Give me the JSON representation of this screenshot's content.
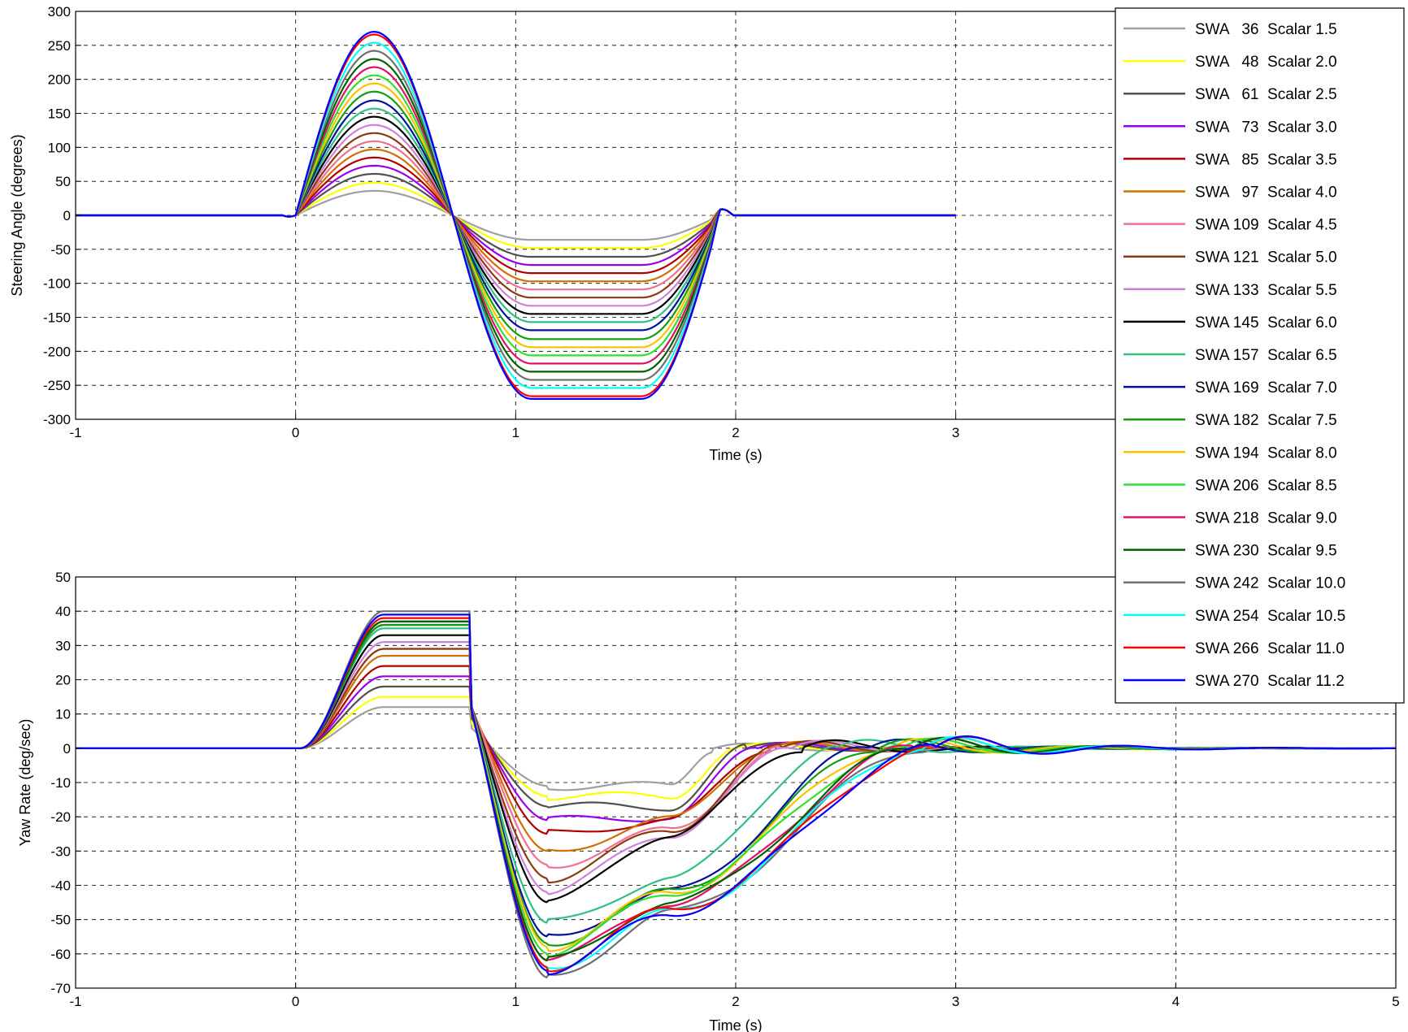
{
  "chart_data": [
    {
      "type": "line",
      "xlabel": "Time (s)",
      "ylabel": "Steering Angle (degrees)",
      "xlim": [
        -1,
        5
      ],
      "ylim": [
        -300,
        300
      ],
      "xticks": [
        "-1",
        "0",
        "1",
        "2",
        "3",
        "4",
        "5"
      ],
      "yticks": [
        "300",
        "250",
        "200",
        "150",
        "100",
        "50",
        "0",
        "-50",
        "-100",
        "-150",
        "-200",
        "-250",
        "-300"
      ],
      "grid": true,
      "legend_position": "top-right",
      "series_note": "Sine-with-dwell steering input; each series peaks at +SWA near t=0.35 s and dwells at -SWA from about 1.1 s to 1.6 s",
      "series": [
        {
          "name": "SWA   36  Scalar 1.5",
          "swa": 36,
          "color": "#a0a0a0"
        },
        {
          "name": "SWA   48  Scalar 2.0",
          "swa": 48,
          "color": "#ffff00"
        },
        {
          "name": "SWA   61  Scalar 2.5",
          "swa": 61,
          "color": "#505050"
        },
        {
          "name": "SWA   73  Scalar 3.0",
          "swa": 73,
          "color": "#9900ee"
        },
        {
          "name": "SWA   85  Scalar 3.5",
          "swa": 85,
          "color": "#b00000"
        },
        {
          "name": "SWA   97  Scalar 4.0",
          "swa": 97,
          "color": "#d07000"
        },
        {
          "name": "SWA 109  Scalar 4.5",
          "swa": 109,
          "color": "#f07090"
        },
        {
          "name": "SWA 121  Scalar 5.0",
          "swa": 121,
          "color": "#8a3a10"
        },
        {
          "name": "SWA 133  Scalar 5.5",
          "swa": 133,
          "color": "#d080d8"
        },
        {
          "name": "SWA 145  Scalar 6.0",
          "swa": 145,
          "color": "#000000"
        },
        {
          "name": "SWA 157  Scalar 6.5",
          "swa": 157,
          "color": "#30c080"
        },
        {
          "name": "SWA 169  Scalar 7.0",
          "swa": 169,
          "color": "#0010a0"
        },
        {
          "name": "SWA 182  Scalar 7.5",
          "swa": 182,
          "color": "#10a010"
        },
        {
          "name": "SWA 194  Scalar 8.0",
          "swa": 194,
          "color": "#ffc000"
        },
        {
          "name": "SWA 206  Scalar 8.5",
          "swa": 206,
          "color": "#30e030"
        },
        {
          "name": "SWA 218  Scalar 9.0",
          "swa": 218,
          "color": "#e0106a"
        },
        {
          "name": "SWA 230  Scalar 9.5",
          "swa": 230,
          "color": "#006000"
        },
        {
          "name": "SWA 242  Scalar 10.0",
          "swa": 242,
          "color": "#707070"
        },
        {
          "name": "SWA 254  Scalar 10.5",
          "swa": 254,
          "color": "#00ffff"
        },
        {
          "name": "SWA 266  Scalar 11.0",
          "swa": 266,
          "color": "#ff0000"
        },
        {
          "name": "SWA 270  Scalar 11.2",
          "swa": 270,
          "color": "#0000ff"
        }
      ]
    },
    {
      "type": "line",
      "xlabel": "Time (s)",
      "ylabel": "Yaw Rate (deg/sec)",
      "xlim": [
        -1,
        5
      ],
      "ylim": [
        -70,
        50
      ],
      "xticks": [
        "-1",
        "0",
        "1",
        "2",
        "3",
        "4",
        "5"
      ],
      "yticks": [
        "50",
        "40",
        "30",
        "20",
        "10",
        "0",
        "-10",
        "-20",
        "-30",
        "-40",
        "-50",
        "-60",
        "-70"
      ],
      "grid": true,
      "series_note": "Yaw rate response for the same 21 steering inputs",
      "series": [
        {
          "name": "SWA   36  Scalar 1.5",
          "peak": 12,
          "trough": -11,
          "dwell": -11,
          "recovery_time": 1.9
        },
        {
          "name": "SWA   48  Scalar 2.0",
          "peak": 15,
          "trough": -14,
          "dwell": -14,
          "recovery_time": 2.0
        },
        {
          "name": "SWA   61  Scalar 2.5",
          "peak": 18,
          "trough": -17,
          "dwell": -17,
          "recovery_time": 2.05
        },
        {
          "name": "SWA   73  Scalar 3.0",
          "peak": 21,
          "trough": -21,
          "dwell": -20,
          "recovery_time": 2.1
        },
        {
          "name": "SWA   85  Scalar 3.5",
          "peak": 24,
          "trough": -25,
          "dwell": -21,
          "recovery_time": 2.15
        },
        {
          "name": "SWA   97  Scalar 4.0",
          "peak": 27,
          "trough": -30,
          "dwell": -21,
          "recovery_time": 2.15
        },
        {
          "name": "SWA 109  Scalar 4.5",
          "peak": 29,
          "trough": -34,
          "dwell": -24,
          "recovery_time": 2.2
        },
        {
          "name": "SWA 121  Scalar 5.0",
          "peak": 29,
          "trough": -38,
          "dwell": -24,
          "recovery_time": 2.2
        },
        {
          "name": "SWA 133  Scalar 5.5",
          "peak": 31,
          "trough": -42,
          "dwell": -25,
          "recovery_time": 2.25
        },
        {
          "name": "SWA 145  Scalar 6.0",
          "peak": 33,
          "trough": -45,
          "dwell": -25,
          "recovery_time": 2.3
        },
        {
          "name": "SWA 157  Scalar 6.5",
          "peak": 35,
          "trough": -51,
          "dwell": -38,
          "recovery_time": 2.45
        },
        {
          "name": "SWA 169  Scalar 7.0",
          "peak": 36,
          "trough": -55,
          "dwell": -42,
          "recovery_time": 2.6
        },
        {
          "name": "SWA 182  Scalar 7.5",
          "peak": 36,
          "trough": -57,
          "dwell": -42,
          "recovery_time": 2.65
        },
        {
          "name": "SWA 194  Scalar 8.0",
          "peak": 37,
          "trough": -58,
          "dwell": -42,
          "recovery_time": 2.7
        },
        {
          "name": "SWA 206  Scalar 8.5",
          "peak": 37,
          "trough": -60,
          "dwell": -42,
          "recovery_time": 2.75
        },
        {
          "name": "SWA 218  Scalar 9.0",
          "peak": 37,
          "trough": -62,
          "dwell": -45,
          "recovery_time": 2.8
        },
        {
          "name": "SWA 230  Scalar 9.5",
          "peak": 37,
          "trough": -62,
          "dwell": -45,
          "recovery_time": 2.8
        },
        {
          "name": "SWA 242  Scalar 10.0",
          "peak": 40,
          "trough": -67,
          "dwell": -48,
          "recovery_time": 2.85
        },
        {
          "name": "SWA 254  Scalar 10.5",
          "peak": 38,
          "trough": -64,
          "dwell": -48,
          "recovery_time": 2.85
        },
        {
          "name": "SWA 266  Scalar 11.0",
          "peak": 38,
          "trough": -64,
          "dwell": -47,
          "recovery_time": 2.9
        },
        {
          "name": "SWA 270  Scalar 11.2",
          "peak": 39,
          "trough": -65,
          "dwell": -48,
          "recovery_time": 2.9
        }
      ]
    }
  ]
}
